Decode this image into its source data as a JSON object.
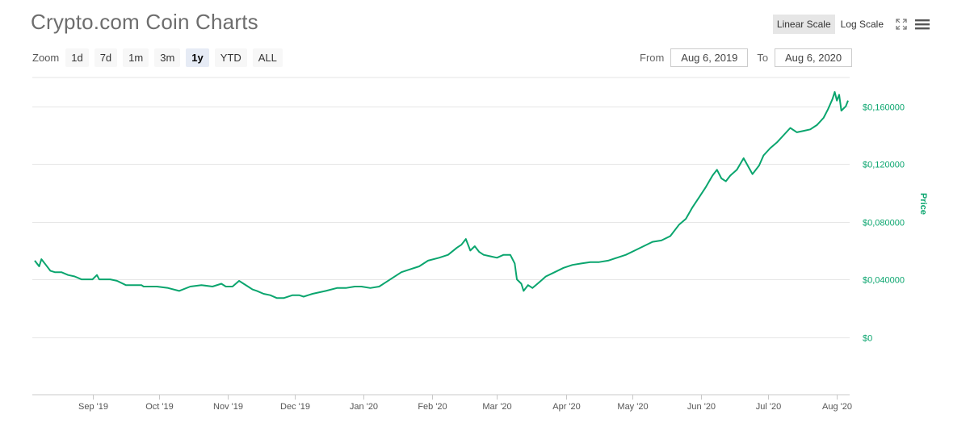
{
  "header": {
    "title": "Crypto.com Coin Charts"
  },
  "zoom": {
    "label": "Zoom",
    "buttons": [
      "1d",
      "7d",
      "1m",
      "3m",
      "1y",
      "YTD",
      "ALL"
    ],
    "active": "1y"
  },
  "range": {
    "from_label": "From",
    "from_value": "Aug 6, 2019",
    "to_label": "To",
    "to_value": "Aug 6, 2020"
  },
  "scale": {
    "linear_label": "Linear Scale",
    "log_label": "Log Scale",
    "active": "linear"
  },
  "icons": {
    "fullscreen": "fullscreen-icon",
    "menu": "menu-icon"
  },
  "colors": {
    "line": "#0aa56e",
    "axis_text": "#0aa56e",
    "grid": "#e6e6e6"
  },
  "chart_data": {
    "type": "line",
    "title": "Crypto.com Coin Charts",
    "xlabel": "",
    "ylabel": "Price",
    "ylim": [
      -0.04,
      0.18
    ],
    "xlim": [
      "2019-08-06",
      "2020-08-06"
    ],
    "grid": true,
    "y_ticks": [
      0,
      0.04,
      0.08,
      0.12,
      0.16
    ],
    "y_tick_labels": [
      "$0",
      "$0,040000",
      "$0,080000",
      "$0,120000",
      "$0,160000"
    ],
    "x_ticks": [
      "2019-09-01",
      "2019-10-01",
      "2019-11-01",
      "2019-12-01",
      "2020-01-01",
      "2020-02-01",
      "2020-03-01",
      "2020-04-01",
      "2020-05-01",
      "2020-06-01",
      "2020-07-01",
      "2020-08-01"
    ],
    "x_tick_labels": [
      "Sep '19",
      "Oct '19",
      "Nov '19",
      "Dec '19",
      "Jan '20",
      "Feb '20",
      "Mar '20",
      "Apr '20",
      "May '20",
      "Jun '20",
      "Jul '20",
      "Aug '20"
    ],
    "series": [
      {
        "x": [
          "2019-08-06",
          "2019-08-08",
          "2019-08-09",
          "2019-08-11",
          "2019-08-13",
          "2019-08-15",
          "2019-08-18",
          "2019-08-21",
          "2019-08-24",
          "2019-08-27",
          "2019-08-30",
          "2019-09-01",
          "2019-09-03",
          "2019-09-04",
          "2019-09-06",
          "2019-09-09",
          "2019-09-12",
          "2019-09-16",
          "2019-09-20",
          "2019-09-23",
          "2019-09-24",
          "2019-09-26",
          "2019-09-30",
          "2019-10-05",
          "2019-10-10",
          "2019-10-15",
          "2019-10-20",
          "2019-10-25",
          "2019-10-29",
          "2019-10-31",
          "2019-11-03",
          "2019-11-06",
          "2019-11-08",
          "2019-11-10",
          "2019-11-12",
          "2019-11-14",
          "2019-11-17",
          "2019-11-20",
          "2019-11-23",
          "2019-11-26",
          "2019-11-30",
          "2019-12-03",
          "2019-12-05",
          "2019-12-09",
          "2019-12-15",
          "2019-12-20",
          "2019-12-24",
          "2019-12-28",
          "2019-12-31",
          "2020-01-04",
          "2020-01-08",
          "2020-01-11",
          "2020-01-14",
          "2020-01-18",
          "2020-01-22",
          "2020-01-26",
          "2020-01-30",
          "2020-02-04",
          "2020-02-08",
          "2020-02-12",
          "2020-02-14",
          "2020-02-16",
          "2020-02-18",
          "2020-02-20",
          "2020-02-22",
          "2020-02-24",
          "2020-02-27",
          "2020-03-01",
          "2020-03-04",
          "2020-03-07",
          "2020-03-09",
          "2020-03-10",
          "2020-03-12",
          "2020-03-13",
          "2020-03-15",
          "2020-03-17",
          "2020-03-20",
          "2020-03-23",
          "2020-03-27",
          "2020-03-31",
          "2020-04-04",
          "2020-04-08",
          "2020-04-12",
          "2020-04-16",
          "2020-04-20",
          "2020-04-24",
          "2020-04-28",
          "2020-05-02",
          "2020-05-06",
          "2020-05-10",
          "2020-05-14",
          "2020-05-18",
          "2020-05-22",
          "2020-05-25",
          "2020-05-28",
          "2020-05-31",
          "2020-06-03",
          "2020-06-06",
          "2020-06-08",
          "2020-06-10",
          "2020-06-12",
          "2020-06-14",
          "2020-06-17",
          "2020-06-20",
          "2020-06-24",
          "2020-06-27",
          "2020-06-29",
          "2020-07-02",
          "2020-07-05",
          "2020-07-08",
          "2020-07-11",
          "2020-07-14",
          "2020-07-17",
          "2020-07-20",
          "2020-07-23",
          "2020-07-26",
          "2020-07-28",
          "2020-07-30",
          "2020-07-31",
          "2020-08-01",
          "2020-08-02",
          "2020-08-03",
          "2020-08-05",
          "2020-08-06"
        ],
        "y": [
          0.053,
          0.049,
          0.054,
          0.05,
          0.046,
          0.045,
          0.045,
          0.043,
          0.042,
          0.04,
          0.04,
          0.04,
          0.043,
          0.04,
          0.04,
          0.04,
          0.039,
          0.036,
          0.036,
          0.036,
          0.035,
          0.035,
          0.035,
          0.034,
          0.032,
          0.035,
          0.036,
          0.035,
          0.037,
          0.035,
          0.035,
          0.039,
          0.037,
          0.035,
          0.033,
          0.032,
          0.03,
          0.029,
          0.027,
          0.027,
          0.029,
          0.029,
          0.028,
          0.03,
          0.032,
          0.034,
          0.034,
          0.035,
          0.035,
          0.034,
          0.035,
          0.038,
          0.041,
          0.045,
          0.047,
          0.049,
          0.053,
          0.055,
          0.057,
          0.062,
          0.064,
          0.068,
          0.06,
          0.063,
          0.059,
          0.057,
          0.056,
          0.055,
          0.057,
          0.057,
          0.051,
          0.04,
          0.037,
          0.032,
          0.036,
          0.034,
          0.038,
          0.042,
          0.045,
          0.048,
          0.05,
          0.051,
          0.052,
          0.052,
          0.053,
          0.055,
          0.057,
          0.06,
          0.063,
          0.066,
          0.067,
          0.07,
          0.078,
          0.082,
          0.09,
          0.097,
          0.104,
          0.112,
          0.116,
          0.11,
          0.108,
          0.112,
          0.116,
          0.124,
          0.113,
          0.119,
          0.126,
          0.131,
          0.135,
          0.14,
          0.145,
          0.142,
          0.143,
          0.144,
          0.147,
          0.152,
          0.158,
          0.165,
          0.17,
          0.164,
          0.168,
          0.157,
          0.16,
          0.164
        ]
      }
    ]
  }
}
